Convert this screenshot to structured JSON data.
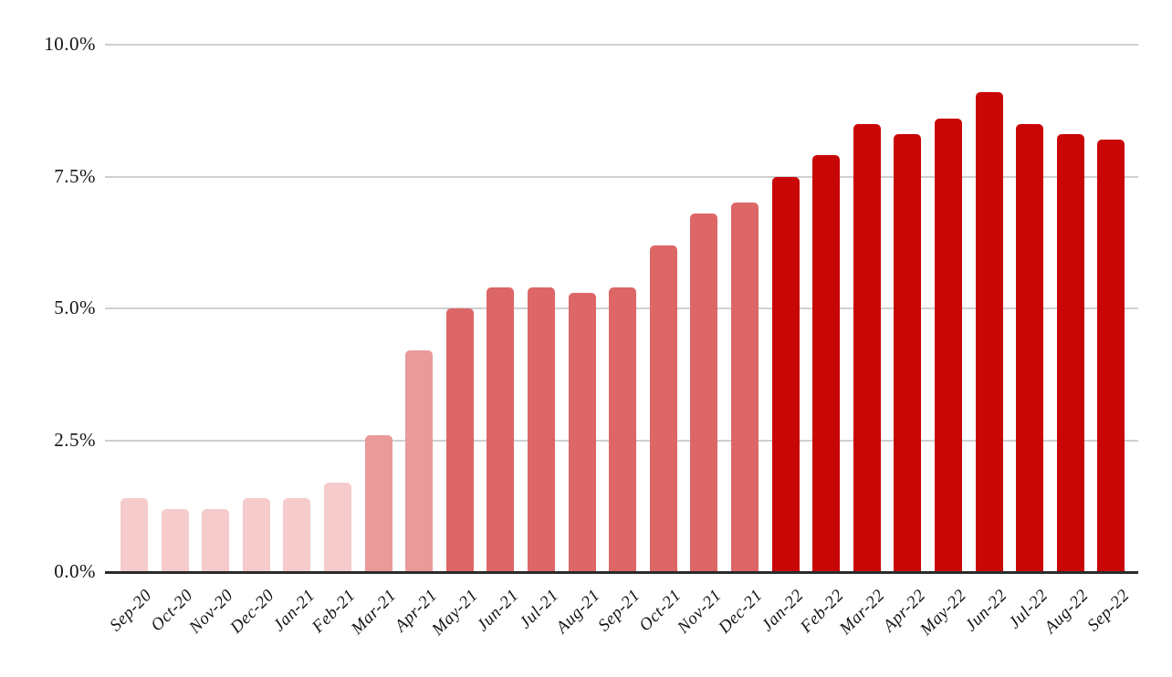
{
  "chart_data": {
    "type": "bar",
    "title": "",
    "xlabel": "",
    "ylabel": "",
    "categories": [
      "Sep-20",
      "Oct-20",
      "Nov-20",
      "Dec-20",
      "Jan-21",
      "Feb-21",
      "Mar-21",
      "Apr-21",
      "May-21",
      "Jun-21",
      "Jul-21",
      "Aug-21",
      "Sep-21",
      "Oct-21",
      "Nov-21",
      "Dec-21",
      "Jan-22",
      "Feb-22",
      "Mar-22",
      "Apr-22",
      "May-22",
      "Jun-22",
      "Jul-22",
      "Aug-22",
      "Sep-22"
    ],
    "values": [
      1.4,
      1.2,
      1.2,
      1.4,
      1.4,
      1.7,
      2.6,
      4.2,
      5.0,
      5.4,
      5.4,
      5.3,
      5.4,
      6.2,
      6.8,
      7.0,
      7.5,
      7.9,
      8.5,
      8.3,
      8.6,
      9.1,
      8.5,
      8.3,
      8.2
    ],
    "bar_colors": [
      "#f5cbcb",
      "#f5cbcb",
      "#f5cbcb",
      "#f5cbcb",
      "#f5cbcb",
      "#f5cbcb",
      "#e99a9a",
      "#e99a9a",
      "#dd6666",
      "#dd6666",
      "#dd6666",
      "#dd6666",
      "#dd6666",
      "#dd6666",
      "#dd6666",
      "#dd6666",
      "#c90606",
      "#c90606",
      "#c90606",
      "#c90606",
      "#c90606",
      "#c90606",
      "#c90606",
      "#c90606",
      "#c90606"
    ],
    "ylim": [
      0,
      10
    ],
    "yticks": [
      {
        "value": 0,
        "label": "0.0%"
      },
      {
        "value": 2.5,
        "label": "2.5%"
      },
      {
        "value": 5,
        "label": "5.0%"
      },
      {
        "value": 7.5,
        "label": "7.5%"
      },
      {
        "value": 10,
        "label": "10.0%"
      }
    ],
    "grid": true,
    "legend": false,
    "palette": {
      "bucket_lightest": "#f5cbcb",
      "bucket_light": "#e99a9a",
      "bucket_medium": "#dd6666",
      "bucket_dark": "#c90606",
      "gridline": "#cfcfcf",
      "axis": "#2b2b2b",
      "label_text": "#141414",
      "background": "#ffffff"
    }
  }
}
